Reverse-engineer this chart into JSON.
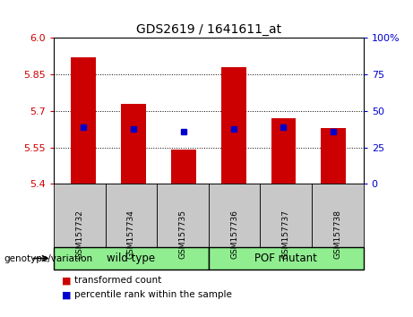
{
  "title": "GDS2619 / 1641611_at",
  "samples": [
    "GSM157732",
    "GSM157734",
    "GSM157735",
    "GSM157736",
    "GSM157737",
    "GSM157738"
  ],
  "bar_values": [
    5.92,
    5.73,
    5.54,
    5.88,
    5.67,
    5.63
  ],
  "percentile_values": [
    5.635,
    5.625,
    5.615,
    5.625,
    5.635,
    5.615
  ],
  "ylim": [
    5.4,
    6.0
  ],
  "yticks": [
    5.4,
    5.55,
    5.7,
    5.85,
    6.0
  ],
  "right_yticks": [
    0,
    25,
    50,
    75,
    100
  ],
  "bar_color": "#CC0000",
  "percentile_color": "#0000CC",
  "background_color": "#ffffff",
  "plot_bg_color": "#ffffff",
  "tick_label_area_color": "#c8c8c8",
  "group_label_area_color": "#90EE90",
  "group_border_color": "#000000",
  "group_labels": [
    "wild type",
    "POF mutant"
  ],
  "genotype_label": "genotype/variation",
  "legend_items": [
    "transformed count",
    "percentile rank within the sample"
  ],
  "bar_width": 0.5
}
